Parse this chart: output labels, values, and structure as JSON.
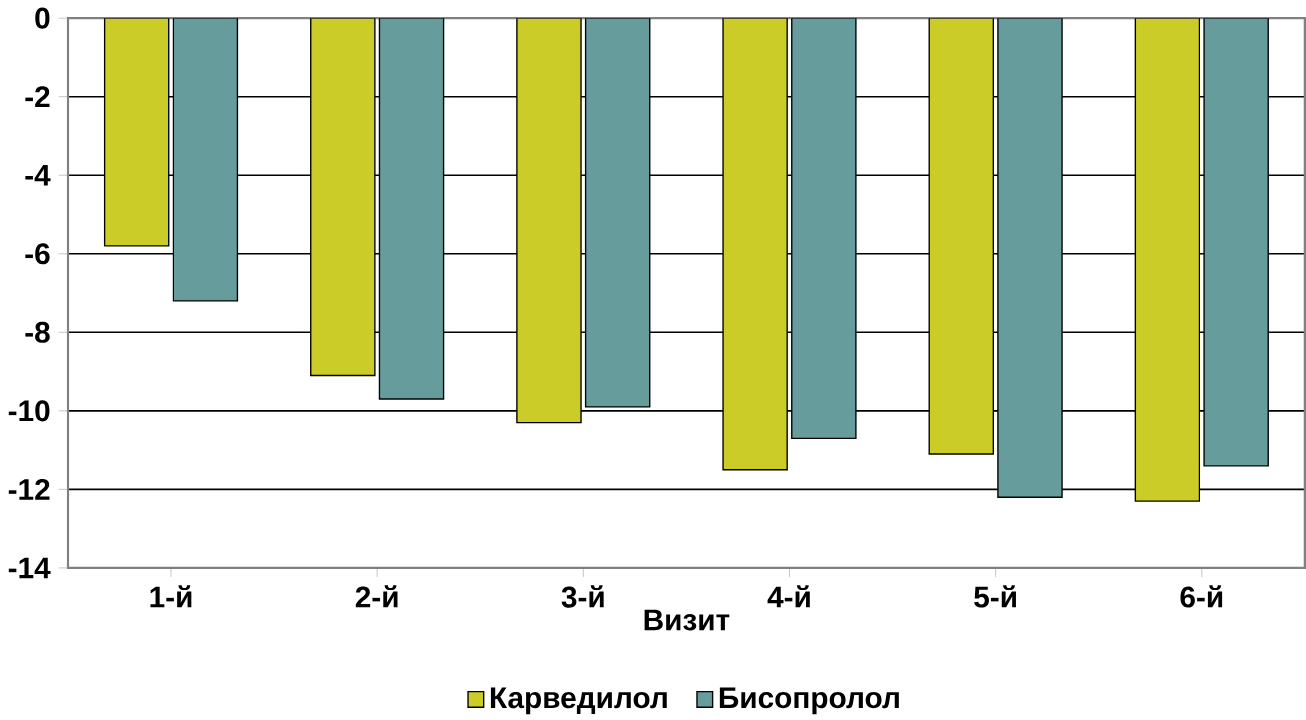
{
  "chart_data": {
    "type": "bar",
    "xlabel": "Визит",
    "categories": [
      "1-й",
      "2-й",
      "3-й",
      "4-й",
      "5-й",
      "6-й"
    ],
    "series": [
      {
        "name": "Карведилол",
        "color": "#cccc28",
        "values": [
          -5.8,
          -9.1,
          -10.3,
          -11.5,
          -11.1,
          -12.3
        ]
      },
      {
        "name": "Бисопролол",
        "color": "#669c9c",
        "values": [
          -7.2,
          -9.7,
          -9.9,
          -10.7,
          -12.2,
          -11.4
        ]
      }
    ],
    "ylim": [
      -14,
      0
    ],
    "yticks": [
      -14,
      -12,
      -10,
      -8,
      -6,
      -4,
      -2,
      0
    ],
    "grid": "y",
    "legend": "bottom"
  }
}
